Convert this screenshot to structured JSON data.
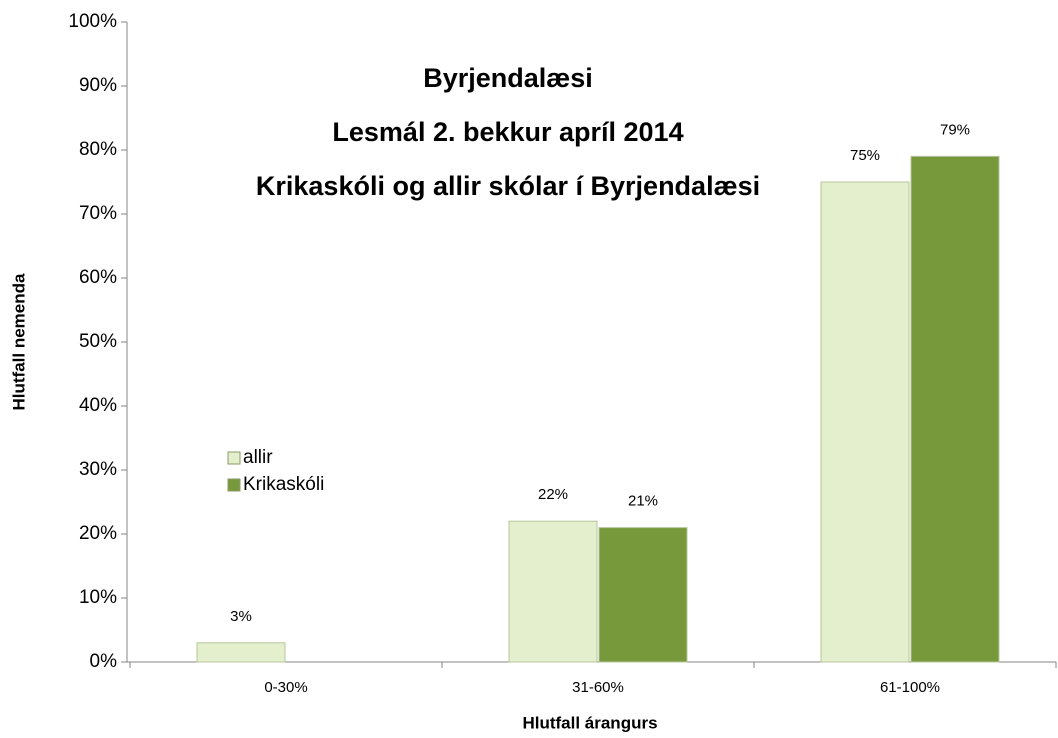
{
  "chart_data": {
    "type": "bar",
    "title": [
      "Byrjendalæsi",
      "Lesmál 2. bekkur apríl 2014",
      "Krikaskóli og allir skólar í Byrjendalæsi"
    ],
    "x_label": "Hlutfall árangurs",
    "y_label": "Hlutfall nemenda",
    "categories": [
      "0-30%",
      "31-60%",
      "61-100%"
    ],
    "series": [
      {
        "name": "allir",
        "color": "#e3efcd",
        "values": [
          3,
          22,
          75
        ],
        "value_labels": [
          "3%",
          "22%",
          "75%"
        ]
      },
      {
        "name": "Krikaskóli",
        "color": "#77993b",
        "values": [
          null,
          21,
          79
        ],
        "value_labels": [
          null,
          "21%",
          "79%"
        ]
      }
    ],
    "ylim": [
      0,
      100
    ],
    "yticks": [
      {
        "value": 0,
        "label": "0%"
      },
      {
        "value": 10,
        "label": "10%"
      },
      {
        "value": 20,
        "label": "20%"
      },
      {
        "value": 30,
        "label": "30%"
      },
      {
        "value": 40,
        "label": "40%"
      },
      {
        "value": 50,
        "label": "50%"
      },
      {
        "value": 60,
        "label": "60%"
      },
      {
        "value": 70,
        "label": "70%"
      },
      {
        "value": 80,
        "label": "80%"
      },
      {
        "value": 90,
        "label": "90%"
      },
      {
        "value": 100,
        "label": "100%"
      }
    ],
    "legend": "left"
  }
}
